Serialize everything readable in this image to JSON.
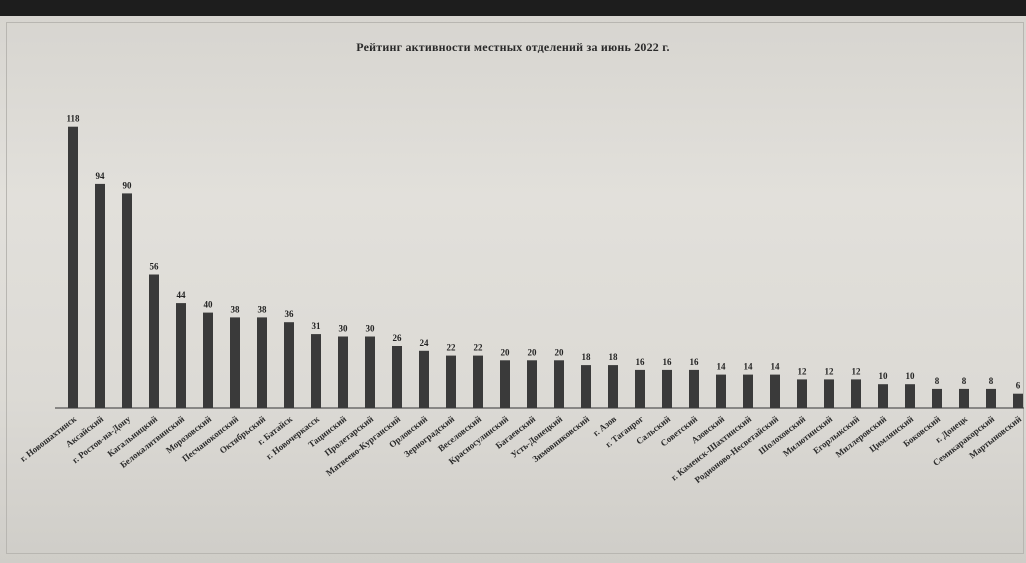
{
  "chart_data": {
    "type": "bar",
    "title": "Рейтинг активности местных отделений за июнь 2022 г.",
    "categories": [
      "г. Новошахтинск",
      "Аксайский",
      "г. Ростов-на-Дону",
      "Кагальницкий",
      "Белокалитвинский",
      "Морозовский",
      "Песчанокопский",
      "Октябрьский",
      "г. Батайск",
      "г. Новочеркасск",
      "Тацинский",
      "Пролетарский",
      "Матвеево-Курганский",
      "Орловский",
      "Зерноградский",
      "Веселовский",
      "Красносулинский",
      "Багаевский",
      "Усть-Донецкий",
      "Зимовниковский",
      "г. Азов",
      "г. Таганрог",
      "Сальский",
      "Советский",
      "Азовский",
      "г. Каменск-Шахтинский",
      "Родионово-Несветайский",
      "Шолоховский",
      "Милютинский",
      "Егорлыкский",
      "Миллеровский",
      "Цимлянский",
      "Боковский",
      "г. Донецк",
      "Семикаракорский",
      "Мартыновский"
    ],
    "values": [
      118,
      94,
      90,
      56,
      44,
      40,
      38,
      38,
      36,
      31,
      30,
      30,
      26,
      24,
      22,
      22,
      20,
      20,
      20,
      18,
      18,
      16,
      16,
      16,
      14,
      14,
      14,
      12,
      12,
      12,
      10,
      10,
      8,
      8,
      8,
      6
    ],
    "ylim": [
      0,
      125
    ],
    "bar_color": "#3a3a3a",
    "grid": false,
    "legend": "none"
  }
}
